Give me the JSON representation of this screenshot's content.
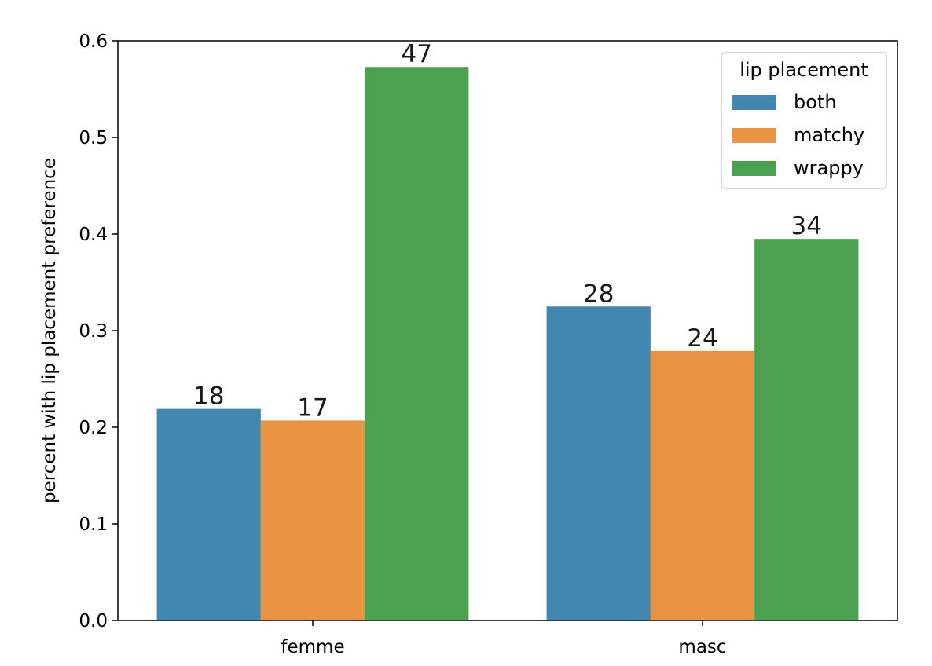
{
  "chart_data": {
    "type": "bar",
    "categories": [
      "femme",
      "masc"
    ],
    "ylabel": "percent with lip placement preference",
    "xlabel": "",
    "ylim": [
      0,
      0.6
    ],
    "yticks": [
      "0.0",
      "0.1",
      "0.2",
      "0.3",
      "0.4",
      "0.5",
      "0.6"
    ],
    "grid": false,
    "legend": {
      "title": "lip placement",
      "placement": "top-right"
    },
    "series": [
      {
        "name": "both",
        "color": "#4287b0",
        "values": [
          0.219,
          0.325
        ],
        "labels": [
          "18",
          "28"
        ]
      },
      {
        "name": "matchy",
        "color": "#e99344",
        "values": [
          0.207,
          0.279
        ],
        "labels": [
          "17",
          "24"
        ]
      },
      {
        "name": "wrappy",
        "color": "#4ba14f",
        "values": [
          0.573,
          0.395
        ],
        "labels": [
          "47",
          "34"
        ]
      }
    ]
  }
}
